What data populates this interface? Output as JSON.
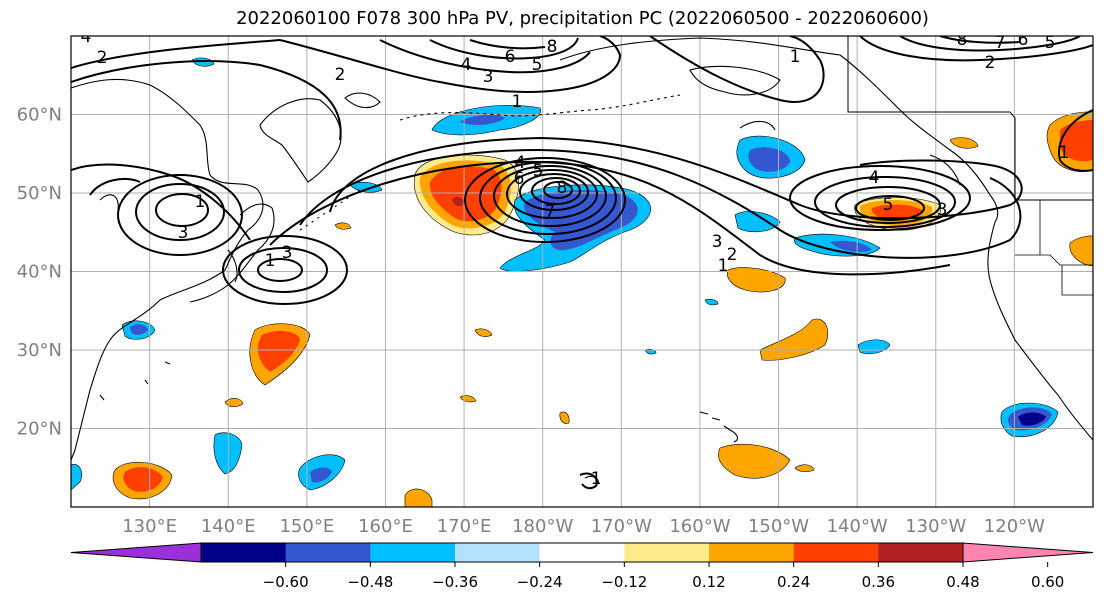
{
  "title": "2022060100 F078 300 hPa PV, precipitation PC (2022060500 - 2022060600)",
  "map": {
    "lon_labels": [
      "130°E",
      "140°E",
      "150°E",
      "160°E",
      "170°E",
      "180°W",
      "170°W",
      "160°W",
      "150°W",
      "140°W",
      "130°W",
      "120°W"
    ],
    "lat_labels": [
      "60°N",
      "50°N",
      "40°N",
      "30°N",
      "20°N"
    ],
    "lon_range": [
      120,
      250
    ],
    "lat_range": [
      10,
      70
    ],
    "contour_labels": [
      "4",
      "2",
      "2",
      "4",
      "3",
      "6",
      "5",
      "8",
      "1",
      "1",
      "1",
      "4",
      "5",
      "6",
      "3",
      "7",
      "8",
      "3",
      "2",
      "1",
      "1",
      "3",
      "4",
      "5",
      "3",
      "8",
      "7",
      "6",
      "5",
      "2",
      "1",
      "1"
    ],
    "colors": {
      "grid": "#b0b0b0",
      "label": "#808080"
    }
  },
  "colorbar": {
    "ticks": [
      "−0.60",
      "−0.48",
      "−0.36",
      "−0.24",
      "−0.12",
      "0.12",
      "0.24",
      "0.36",
      "0.48",
      "0.60"
    ],
    "colors": [
      "#9b30d9",
      "#00008b",
      "#3557d0",
      "#00bfff",
      "#b2e2ff",
      "#ffffff",
      "#ffeb8a",
      "#ffa500",
      "#ff4000",
      "#b22222",
      "#ff85b0"
    ]
  }
}
